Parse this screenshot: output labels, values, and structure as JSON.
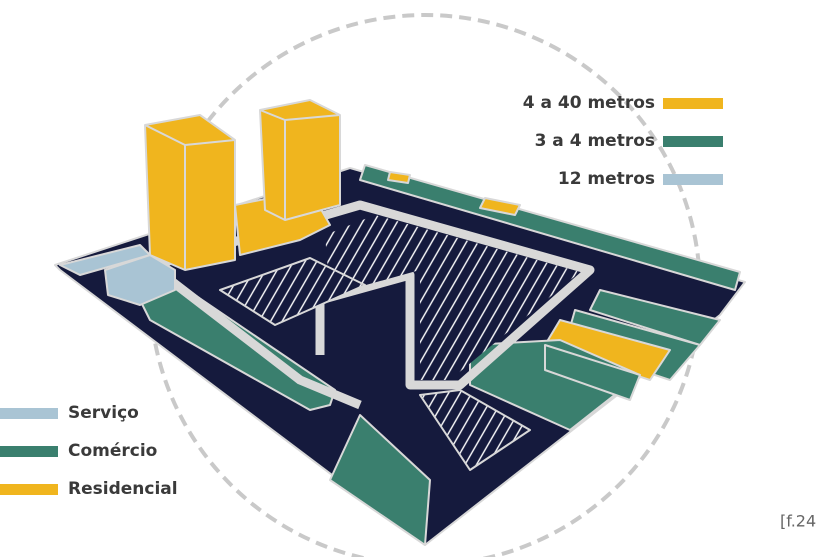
{
  "height_legend": [
    {
      "label": "4 a 40 metros",
      "color": "#f0b51e"
    },
    {
      "label": "3 a 4 metros",
      "color": "#3a7f6e"
    },
    {
      "label": "12 metros",
      "color": "#a9c4d4"
    }
  ],
  "use_legend": [
    {
      "label": "Serviço",
      "color": "#a9c4d4"
    },
    {
      "label": "Comércio",
      "color": "#3a7f6e"
    },
    {
      "label": "Residencial",
      "color": "#f0b51e"
    }
  ],
  "figure_ref": "[f.24"
}
